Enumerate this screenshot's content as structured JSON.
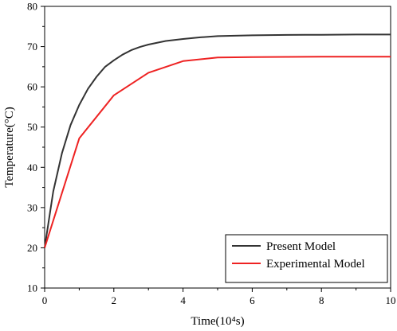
{
  "chart_data": {
    "type": "line",
    "title": "",
    "xlabel": "Time(10⁴s)",
    "ylabel": "Temperature(°C)",
    "xlim": [
      0,
      10
    ],
    "ylim": [
      10,
      80
    ],
    "xticks": [
      0,
      2,
      4,
      6,
      8,
      10
    ],
    "yticks": [
      10,
      20,
      30,
      40,
      50,
      60,
      70,
      80
    ],
    "grid": false,
    "legend_position": "bottom-right",
    "series": [
      {
        "name": "Present Model",
        "color": "#333333",
        "x": [
          0,
          0.25,
          0.5,
          0.75,
          1,
          1.25,
          1.5,
          1.75,
          2,
          2.25,
          2.5,
          2.75,
          3,
          3.5,
          4,
          4.5,
          5,
          5.5,
          6,
          7,
          8,
          9,
          10
        ],
        "y": [
          20,
          34,
          43.5,
          50.5,
          55.5,
          59.5,
          62.5,
          65,
          66.6,
          68,
          69.1,
          69.9,
          70.5,
          71.4,
          71.9,
          72.3,
          72.6,
          72.7,
          72.8,
          72.9,
          72.95,
          73,
          73
        ]
      },
      {
        "name": "Experimental Model",
        "color": "#ee2222",
        "x": [
          0,
          1,
          2,
          3,
          4,
          5,
          6,
          7,
          8,
          9,
          10
        ],
        "y": [
          20,
          47.2,
          57.9,
          63.5,
          66.4,
          67.3,
          67.4,
          67.45,
          67.5,
          67.5,
          67.5
        ]
      }
    ]
  }
}
